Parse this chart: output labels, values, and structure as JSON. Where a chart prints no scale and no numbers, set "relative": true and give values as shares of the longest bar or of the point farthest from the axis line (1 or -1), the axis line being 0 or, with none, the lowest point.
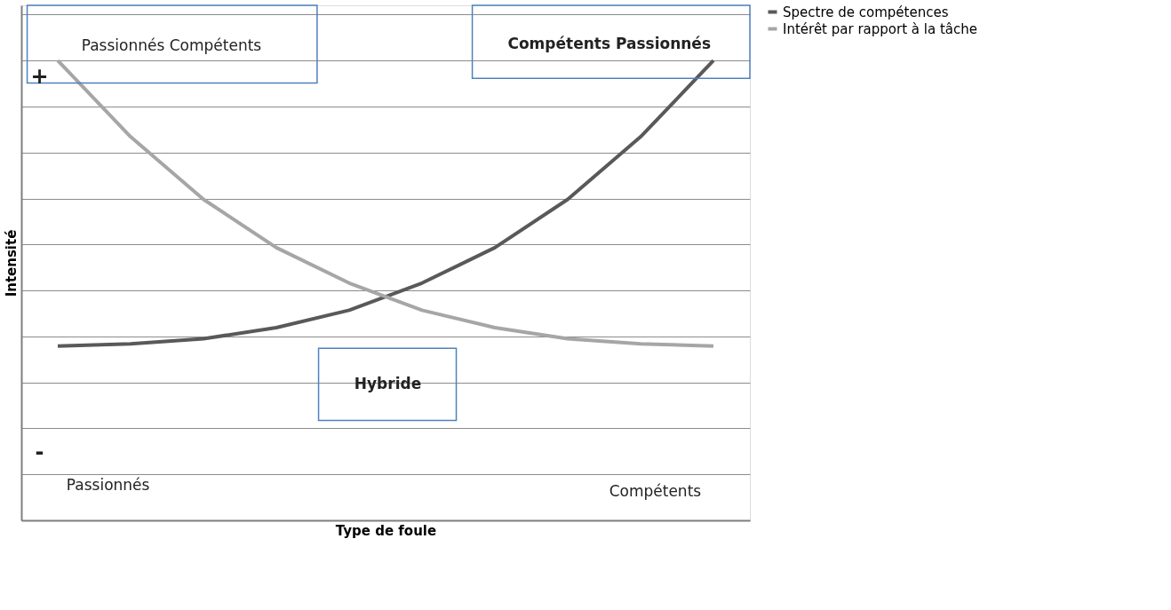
{
  "chart_data": {
    "type": "line",
    "relative": true,
    "xlabel": "Type de foule",
    "ylabel": "Intensité",
    "categories": [
      null,
      null,
      null,
      null,
      null,
      null,
      null,
      null,
      null,
      null
    ],
    "series": [
      {
        "name": "Spectre de compétences",
        "color": "#595959",
        "values": [
          0.379,
          0.384,
          0.395,
          0.419,
          0.457,
          0.516,
          0.593,
          0.698,
          0.834,
          1
        ]
      },
      {
        "name": "Intérêt par rapport à la tâche",
        "color": "#a6a6a6",
        "values": [
          1,
          0.834,
          0.698,
          0.593,
          0.516,
          0.457,
          0.419,
          0.395,
          0.384,
          0.379
        ]
      }
    ],
    "annotations": [
      "Passionnés Compétents",
      "Compétents Passionnés",
      "Hybride",
      "+",
      "-",
      "Passionnés",
      "Compétents"
    ],
    "grid": "y",
    "legend": "right",
    "marker": "none",
    "line_style": "solid"
  }
}
